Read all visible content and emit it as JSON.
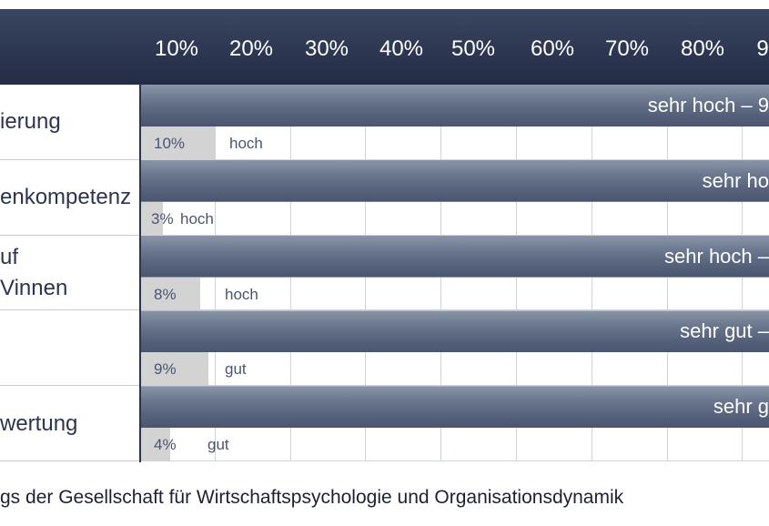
{
  "chart_data": {
    "type": "bar",
    "x_ticks": [
      "10%",
      "20%",
      "30%",
      "40%",
      "50%",
      "60%",
      "70%",
      "80%",
      "9"
    ],
    "rows": [
      {
        "label_lines": [
          "ierung"
        ],
        "main_label": "sehr hoch – 9",
        "small_value": "10%",
        "small_category": "hoch"
      },
      {
        "label_lines": [
          "enkompetenz"
        ],
        "main_label": "sehr ho",
        "small_value": "3%",
        "small_category": "hoch"
      },
      {
        "label_lines": [
          "uf",
          "Vinnen"
        ],
        "main_label": "sehr hoch –",
        "small_value": "8%",
        "small_category": "hoch"
      },
      {
        "label_lines": [
          ""
        ],
        "main_label": "sehr gut – ",
        "small_value": "9%",
        "small_category": "gut"
      },
      {
        "label_lines": [
          "wertung"
        ],
        "main_label": "sehr g",
        "small_value": "4%",
        "small_category": "gut"
      }
    ],
    "small_values": [
      10,
      3,
      8,
      9,
      4
    ],
    "xlim": [
      0,
      100
    ]
  },
  "source_text": "gs der Gesellschaft für Wirtschaftspsychologie und Organisationsdynamik",
  "colors": {
    "header": "#2a3350",
    "bar": "#6c788f",
    "label": "#2b3550",
    "grid": "#cfd3da",
    "small_bar": "#d3d3d3"
  }
}
